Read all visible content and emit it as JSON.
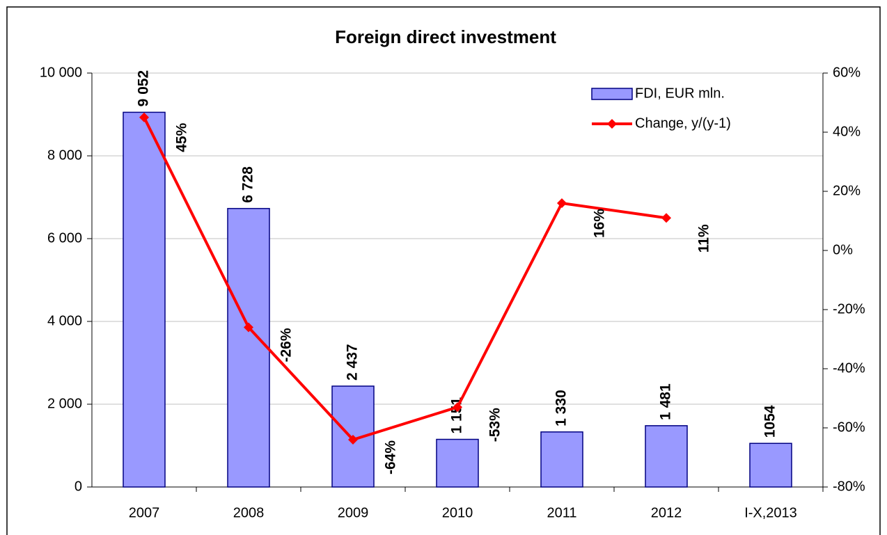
{
  "chart_data": {
    "type": "bar",
    "title": "Foreign direct investment",
    "categories": [
      "2007",
      "2008",
      "2009",
      "2010",
      "2011",
      "2012",
      "I-X,2013"
    ],
    "series": [
      {
        "name": "FDI, EUR mln.",
        "type": "bar",
        "color": "#9999ff",
        "values": [
          9052,
          6728,
          2437,
          1151,
          1330,
          1481,
          1054
        ],
        "value_labels": [
          "9 052",
          "6 728",
          "2 437",
          "1 151",
          "1 330",
          "1 481",
          "1054"
        ]
      },
      {
        "name": "Change, y/(y-1)",
        "type": "line",
        "color": "#ff0000",
        "axis": "y2",
        "values": [
          45,
          -26,
          -64,
          -53,
          16,
          11,
          null
        ],
        "value_labels": [
          "45%",
          "-26%",
          "-64%",
          "-53%",
          "16%",
          "11%",
          null
        ]
      }
    ],
    "ylim": [
      0,
      10000
    ],
    "yticks": [
      0,
      {
        "value": 2000,
        "label": "2 000"
      },
      {
        "value": 4000,
        "label": "4 000"
      },
      {
        "value": 6000,
        "label": "6 000"
      },
      {
        "value": 8000,
        "label": "8 000"
      },
      {
        "value": 10000,
        "label": "10 000"
      }
    ],
    "y2lim": [
      -80,
      60
    ],
    "y2ticks": [
      {
        "value": -80,
        "label": "-80%"
      },
      {
        "value": -60,
        "label": "-60%"
      },
      {
        "value": -40,
        "label": "-40%"
      },
      {
        "value": -20,
        "label": "-20%"
      },
      {
        "value": 0,
        "label": "0%"
      },
      {
        "value": 20,
        "label": "20%"
      },
      {
        "value": 40,
        "label": "40%"
      },
      {
        "value": 60,
        "label": "60%"
      }
    ],
    "grid": true,
    "legend": "top-right"
  }
}
